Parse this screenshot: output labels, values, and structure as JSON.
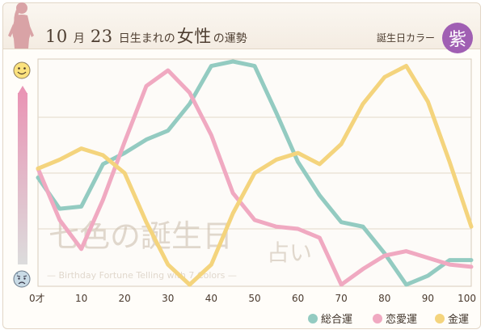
{
  "header": {
    "title_month": "10",
    "title_month_unit": "月",
    "title_day": "23",
    "title_rest_1": "日生まれの",
    "title_emph": "女性",
    "title_rest_2": "の運勢",
    "color_label": "誕生日カラー",
    "color_char": "紫",
    "color_hex": "#a05fb3"
  },
  "watermark": {
    "line1": "七色の誕生日",
    "line2": "占い",
    "line3": "— Birthday Fortune Telling with 7 Colors —"
  },
  "icons": {
    "top": "smiling-face-icon",
    "bottom": "worried-face-icon"
  },
  "chart_data": {
    "type": "line",
    "x": [
      0,
      5,
      10,
      15,
      20,
      25,
      30,
      35,
      40,
      45,
      50,
      55,
      60,
      65,
      70,
      75,
      80,
      85,
      90,
      95,
      100
    ],
    "x_tick_labels": [
      "0才",
      "10",
      "20",
      "30",
      "40",
      "50",
      "60",
      "70",
      "80",
      "90",
      "100"
    ],
    "x_tick_values": [
      0,
      10,
      20,
      30,
      40,
      50,
      60,
      70,
      80,
      90,
      100
    ],
    "xlim": [
      0,
      100
    ],
    "ylim": [
      0,
      100
    ],
    "grid": true,
    "legend_position": "bottom-right",
    "series": [
      {
        "name": "総合運",
        "color": "#93cbc1",
        "values": [
          48,
          34,
          35,
          54,
          59,
          65,
          69,
          81,
          98,
          100,
          98,
          77,
          55,
          40,
          28,
          26,
          14,
          0,
          4,
          11,
          11
        ]
      },
      {
        "name": "恋愛運",
        "color": "#f0a9c1",
        "values": [
          52,
          29,
          16,
          38,
          64,
          89,
          96,
          86,
          67,
          41,
          29,
          26,
          25,
          21,
          0,
          7,
          13,
          15,
          12,
          9,
          8
        ]
      },
      {
        "name": "金運",
        "color": "#f4d47d",
        "values": [
          52,
          56,
          61,
          58,
          50,
          28,
          9,
          0,
          9,
          32,
          50,
          56,
          59,
          54,
          63,
          81,
          93,
          98,
          82,
          55,
          26
        ]
      }
    ]
  }
}
